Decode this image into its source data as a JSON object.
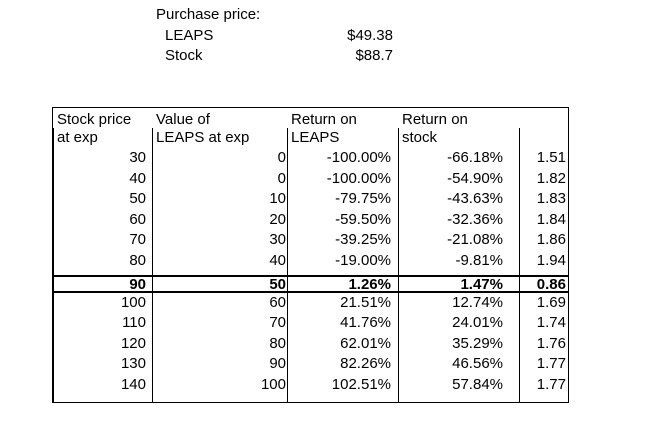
{
  "purchase": {
    "heading": "Purchase price:",
    "items": [
      {
        "label": "LEAPS",
        "value": "$49.38"
      },
      {
        "label": "Stock",
        "value": "$88.7"
      }
    ]
  },
  "table": {
    "headers": [
      {
        "line1": "Stock price",
        "line2": "at exp"
      },
      {
        "line1": "Value of",
        "line2": "LEAPS at exp"
      },
      {
        "line1": "Return on",
        "line2": "LEAPS"
      },
      {
        "line1": "Return on",
        "line2": "stock"
      },
      {
        "line1": "",
        "line2": ""
      }
    ],
    "rows": [
      [
        "30",
        "0",
        "-100.00%",
        "-66.18%",
        "1.51"
      ],
      [
        "40",
        "0",
        "-100.00%",
        "-54.90%",
        "1.82"
      ],
      [
        "50",
        "10",
        "-79.75%",
        "-43.63%",
        "1.83"
      ],
      [
        "60",
        "20",
        "-59.50%",
        "-32.36%",
        "1.84"
      ],
      [
        "70",
        "30",
        "-39.25%",
        "-21.08%",
        "1.86"
      ],
      [
        "80",
        "40",
        "-19.00%",
        "-9.81%",
        "1.94"
      ],
      [
        "90",
        "50",
        "1.26%",
        "1.47%",
        "0.86"
      ],
      [
        "100",
        "60",
        "21.51%",
        "12.74%",
        "1.69"
      ],
      [
        "110",
        "70",
        "41.76%",
        "24.01%",
        "1.74"
      ],
      [
        "120",
        "80",
        "62.01%",
        "35.29%",
        "1.76"
      ],
      [
        "130",
        "90",
        "82.26%",
        "46.56%",
        "1.77"
      ],
      [
        "140",
        "100",
        "102.51%",
        "57.84%",
        "1.77"
      ]
    ],
    "highlight_row": 6
  }
}
